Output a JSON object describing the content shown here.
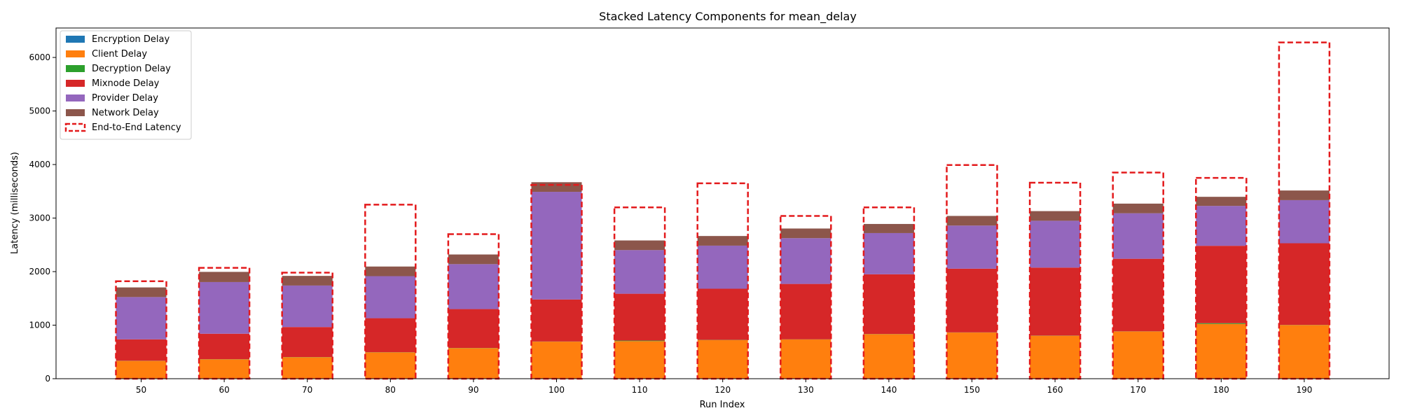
{
  "chart_data": {
    "type": "bar",
    "stacked": true,
    "title": "Stacked Latency Components for mean_delay",
    "xlabel": "Run Index",
    "ylabel": "Latency (milliseconds)",
    "categories": [
      "50",
      "60",
      "70",
      "80",
      "90",
      "100",
      "110",
      "120",
      "130",
      "140",
      "150",
      "160",
      "170",
      "180",
      "190"
    ],
    "ylim": [
      0,
      6550
    ],
    "yticks": [
      0,
      1000,
      2000,
      3000,
      4000,
      5000,
      6000
    ],
    "grid": false,
    "legend_position": "upper-left",
    "series": [
      {
        "name": "Encryption Delay",
        "color": "#1f77b4",
        "values": [
          2,
          2,
          2,
          2,
          2,
          2,
          2,
          2,
          2,
          2,
          2,
          2,
          2,
          2,
          2
        ]
      },
      {
        "name": "Client Delay",
        "color": "#ff7f0e",
        "values": [
          330,
          360,
          400,
          490,
          570,
          690,
          700,
          720,
          730,
          830,
          860,
          800,
          880,
          1020,
          1000
        ]
      },
      {
        "name": "Decryption Delay",
        "color": "#2ca02c",
        "values": [
          3,
          3,
          3,
          3,
          3,
          3,
          10,
          3,
          3,
          3,
          3,
          3,
          3,
          15,
          3
        ]
      },
      {
        "name": "Mixnode Delay",
        "color": "#d62728",
        "values": [
          400,
          475,
          560,
          635,
          725,
          785,
          875,
          955,
          1035,
          1115,
          1190,
          1270,
          1355,
          1445,
          1525
        ]
      },
      {
        "name": "Provider Delay",
        "color": "#9467bd",
        "values": [
          790,
          965,
          775,
          785,
          840,
          2010,
          815,
          805,
          855,
          770,
          805,
          875,
          850,
          745,
          805
        ]
      },
      {
        "name": "Network Delay",
        "color": "#8c564b",
        "values": [
          180,
          190,
          180,
          180,
          180,
          180,
          180,
          180,
          180,
          170,
          180,
          180,
          180,
          170,
          180
        ]
      }
    ],
    "end_to_end": {
      "name": "End-to-End Latency",
      "color": "#e31a1c",
      "values": [
        1820,
        2070,
        1980,
        3250,
        2700,
        3620,
        3200,
        3650,
        3040,
        3200,
        3990,
        3660,
        3850,
        3750,
        6280
      ]
    }
  }
}
